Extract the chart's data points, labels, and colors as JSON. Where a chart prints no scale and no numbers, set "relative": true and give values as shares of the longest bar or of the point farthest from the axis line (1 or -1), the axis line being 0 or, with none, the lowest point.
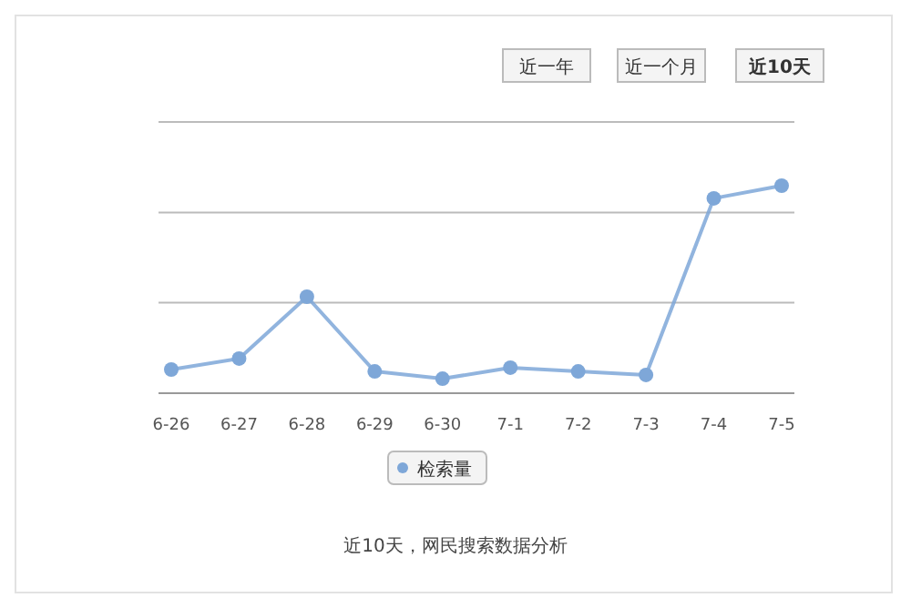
{
  "chart_data": {
    "type": "line",
    "relative": true,
    "categories": [
      "6-26",
      "6-27",
      "6-28",
      "6-29",
      "6-30",
      "7-1",
      "7-2",
      "7-3",
      "7-4",
      "7-5"
    ],
    "series": [
      {
        "name": "检索量",
        "color": "#7ea7d8",
        "values": [
          0.114,
          0.167,
          0.465,
          0.105,
          0.07,
          0.123,
          0.105,
          0.088,
          0.939,
          1
        ]
      }
    ],
    "marker": "circle",
    "legend": "bottom",
    "ref_lines": [
      {
        "axis": "y",
        "value": 0.436,
        "color": "#bbbbbb"
      },
      {
        "axis": "y",
        "value": 0.871,
        "color": "#bbbbbb"
      },
      {
        "axis": "y",
        "value": 1.307,
        "color": "#bbbbbb"
      }
    ],
    "annotations": [
      "近一年",
      "近一个月",
      "近10天",
      "近10天，网民搜索数据分析"
    ]
  }
}
